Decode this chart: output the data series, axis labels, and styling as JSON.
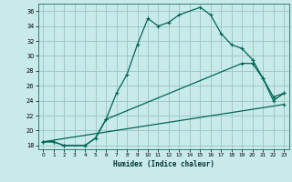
{
  "title": "",
  "xlabel": "Humidex (Indice chaleur)",
  "background_color": "#c8eaea",
  "grid_color": "#a0c8c8",
  "line_color": "#006655",
  "xlim": [
    -0.5,
    23.5
  ],
  "ylim": [
    17.5,
    37.0
  ],
  "xticks": [
    0,
    1,
    2,
    3,
    4,
    5,
    6,
    7,
    8,
    9,
    10,
    11,
    12,
    13,
    14,
    15,
    16,
    17,
    18,
    19,
    20,
    21,
    22,
    23
  ],
  "yticks": [
    18,
    20,
    22,
    24,
    26,
    28,
    30,
    32,
    34,
    36
  ],
  "curve1_x": [
    0,
    1,
    2,
    4,
    5,
    6,
    7,
    8,
    9,
    10,
    11,
    12,
    13,
    15,
    16,
    17,
    18,
    19,
    20,
    21,
    22,
    23
  ],
  "curve1_y": [
    18.5,
    18.5,
    18.0,
    18.0,
    19.0,
    21.5,
    25.0,
    27.5,
    31.5,
    35.0,
    34.0,
    34.5,
    35.5,
    36.5,
    35.5,
    33.0,
    31.5,
    31.0,
    29.5,
    27.0,
    24.0,
    25.0
  ],
  "curve2_x": [
    0,
    1,
    2,
    4,
    5,
    6,
    19,
    20,
    21,
    22,
    23
  ],
  "curve2_y": [
    18.5,
    18.5,
    18.0,
    18.0,
    19.0,
    21.5,
    29.0,
    29.0,
    27.0,
    24.5,
    25.0
  ],
  "curve3_x": [
    0,
    23
  ],
  "curve3_y": [
    18.5,
    23.5
  ]
}
